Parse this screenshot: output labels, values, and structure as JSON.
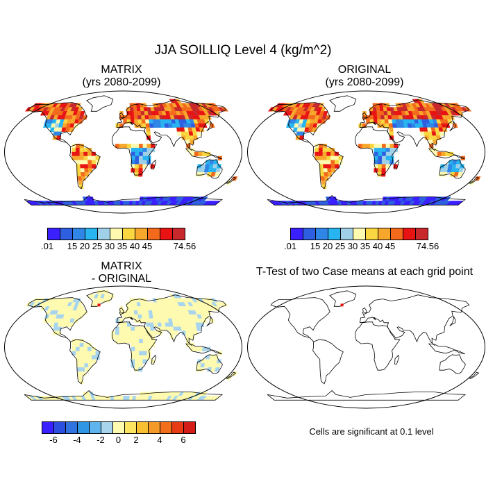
{
  "title": "JJA SOILLIQ Level 4 (kg/m^2)",
  "panels": {
    "matrix": {
      "title_line1": "MATRIX",
      "title_line2": "(yrs 2080-2099)"
    },
    "original": {
      "title_line1": "ORIGINAL",
      "title_line2": "(yrs 2080-2099)"
    },
    "difference": {
      "title_line1": "MATRIX",
      "title_line2": "- ORIGINAL"
    },
    "ttest": {
      "title_line1": "T-Test of two Case means at each grid point",
      "note": "Cells are significant at 0.1 level"
    }
  },
  "colorbars": {
    "absolute": {
      "colors": [
        "#3a1fff",
        "#2d5fe0",
        "#2f86e6",
        "#27b4f0",
        "#9fd0e8",
        "#fefab0",
        "#fad640",
        "#f7a72c",
        "#f46a1c",
        "#e81414",
        "#c8282c"
      ],
      "labels": [
        ".01",
        "15",
        "20",
        "25",
        "30",
        "35",
        "40",
        "45",
        "74.56"
      ]
    },
    "difference": {
      "colors": [
        "#3a1fff",
        "#2d4fe0",
        "#2f72e0",
        "#2f96e6",
        "#60b4ee",
        "#a8d4ee",
        "#fefab0",
        "#fae460",
        "#f8c030",
        "#f59a28",
        "#f2701c",
        "#e83a14",
        "#d41c18"
      ],
      "labels": [
        "-6",
        "-4",
        "-2",
        "0",
        "2",
        "4",
        "6"
      ]
    }
  }
}
